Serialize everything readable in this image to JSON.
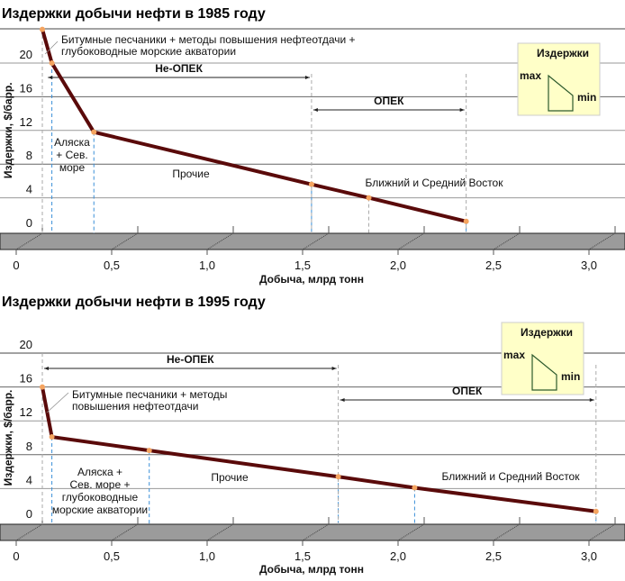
{
  "chart_data": [
    {
      "type": "line",
      "title": "Издержки добычи нефти в 1985 году",
      "xlabel": "Добыча, млрд тонн",
      "ylabel": "Издержки, $/барр.",
      "xlim": [
        0,
        3.0
      ],
      "ylim": [
        0,
        24
      ],
      "x_ticks": [
        "0",
        "0,5",
        "1,0",
        "1,5",
        "2,0",
        "2,5",
        "3,0"
      ],
      "x_tick_values": [
        0,
        0.5,
        1.0,
        1.5,
        2.0,
        2.5,
        3.0
      ],
      "y_ticks": [
        "0",
        "4",
        "8",
        "12",
        "16",
        "20"
      ],
      "y_tick_values": [
        0,
        4,
        8,
        12,
        16,
        20
      ],
      "points": [
        {
          "x": 0.0,
          "y": 24.0
        },
        {
          "x": 0.05,
          "y": 20.0
        },
        {
          "x": 0.27,
          "y": 11.8
        },
        {
          "x": 1.41,
          "y": 5.6
        },
        {
          "x": 1.71,
          "y": 4.0
        },
        {
          "x": 2.22,
          "y": 1.2
        }
      ],
      "annotations": {
        "bitumen": [
          "Битумные песчаники + методы повышения нефтеотдачи +",
          "глубоководные морские акватории"
        ],
        "alaska": [
          "Аляска",
          "+ Сев.",
          "море"
        ],
        "others": "Прочие",
        "middle_east": "Ближний и Средний Восток",
        "non_opec": "Не-ОПЕК",
        "opec": "ОПЕК"
      },
      "legend": {
        "title": "Издержки",
        "max": "max",
        "min": "min"
      }
    },
    {
      "type": "line",
      "title": "Издержки добычи нефти в 1995 году",
      "xlabel": "Добыча, млрд тонн",
      "ylabel": "Издержки, $/барр.",
      "xlim": [
        0,
        3.0
      ],
      "ylim": [
        0,
        20
      ],
      "x_ticks": [
        "0",
        "0,5",
        "1,0",
        "1,5",
        "2,0",
        "2,5",
        "3,0"
      ],
      "x_tick_values": [
        0,
        0.5,
        1.0,
        1.5,
        2.0,
        2.5,
        3.0
      ],
      "y_ticks": [
        "0",
        "4",
        "8",
        "12",
        "16",
        "20"
      ],
      "y_tick_values": [
        0,
        4,
        8,
        12,
        16,
        20
      ],
      "points": [
        {
          "x": 0.0,
          "y": 16.0
        },
        {
          "x": 0.05,
          "y": 10.1
        },
        {
          "x": 0.56,
          "y": 8.5
        },
        {
          "x": 1.55,
          "y": 5.4
        },
        {
          "x": 1.95,
          "y": 4.1
        },
        {
          "x": 2.9,
          "y": 1.3
        }
      ],
      "annotations": {
        "bitumen": [
          "Битумные песчаники + методы",
          "повышения нефтеотдачи"
        ],
        "alaska": [
          "Аляска +",
          "Сев. море +",
          "глубоководные",
          "морские акватории"
        ],
        "others": "Прочие",
        "middle_east": "Ближний и Средний Восток",
        "non_opec": "Не-ОПЕК",
        "opec": "ОПЕК"
      },
      "legend": {
        "title": "Издержки",
        "max": "max",
        "min": "min"
      }
    }
  ],
  "colors": {
    "line": "#5a0a0a",
    "marker": "#f4a460",
    "dash": "#3a8fd8",
    "floor": "#9b9b9b",
    "legend_bg": "#ffffc8"
  }
}
